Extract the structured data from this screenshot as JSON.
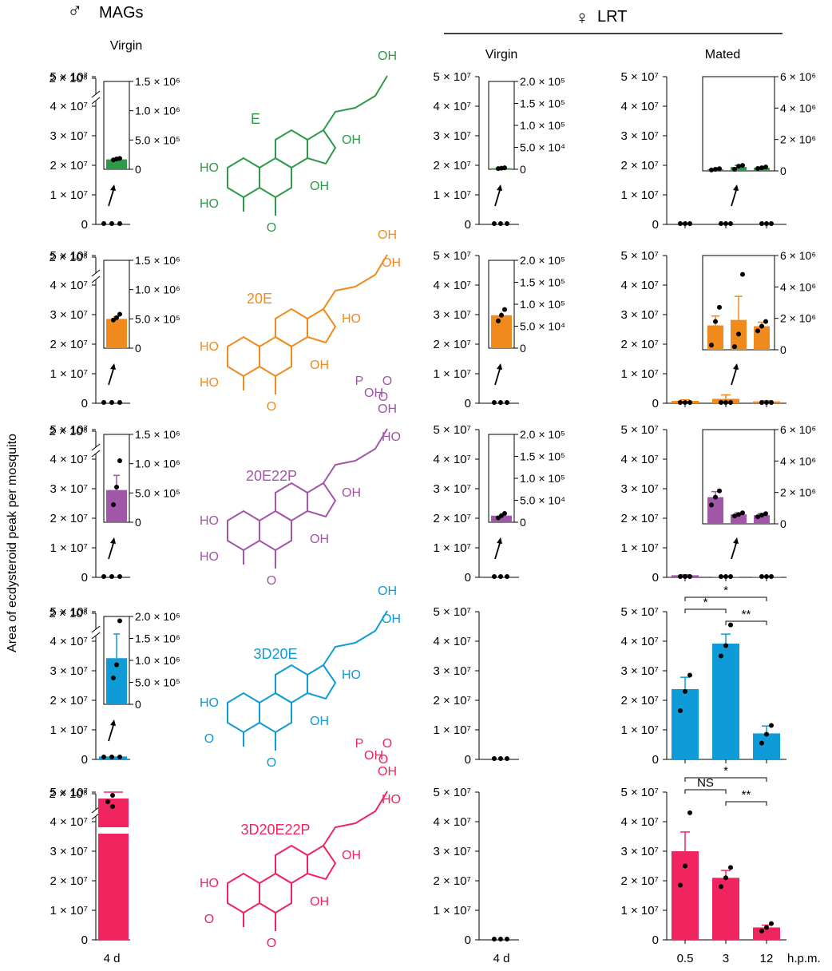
{
  "header": {
    "male_symbol": "♂",
    "male_title": "MAGs",
    "female_symbol": "♀",
    "female_title": "LRT",
    "col_mags": "Virgin",
    "col_lrt_virgin": "Virgin",
    "col_lrt_mated": "Mated"
  },
  "y_axis_label": "Area of ecdysteroid peak per mosquito",
  "x_labels": {
    "mags": "4 d",
    "lrt_virgin": "4 d",
    "mated": [
      "0.5",
      "3",
      "12"
    ],
    "mated_unit": "h.p.m."
  },
  "colors": {
    "E": "#2e9a48",
    "20E": "#f18a1d",
    "20E22P": "#a156a8",
    "3D20E": "#0e9bd8",
    "3D20E22P": "#f0245e"
  },
  "chart_data": [
    {
      "type": "bar",
      "compound": "E",
      "color": "#2e9a48",
      "mags_virgin": {
        "main_value": 0,
        "main_ticks": [
          "0",
          "1 × 10⁷",
          "2 × 10⁷",
          "3 × 10⁷",
          "4 × 10⁷",
          "5 × 10⁷"
        ],
        "break_tick": "2 × 10⁸",
        "inset": {
          "value": 170000,
          "points": [
            160000,
            175000,
            185000
          ],
          "err": 10000,
          "ylim": [
            0,
            1500000
          ],
          "ticks": [
            "0",
            "5.0 × 10⁵",
            "1.0 × 10⁶",
            "1.5 × 10⁶"
          ]
        }
      },
      "lrt_virgin": {
        "main_value": 0,
        "main_ticks": [
          "0",
          "1 × 10⁷",
          "2 × 10⁷",
          "3 × 10⁷",
          "4 × 10⁷",
          "5 × 10⁷"
        ],
        "inset": {
          "value": 2500,
          "points": [
            1500,
            2500,
            3500
          ],
          "err": 800,
          "ylim": [
            0,
            200000
          ],
          "ticks": [
            "0",
            "5.0 × 10⁴",
            "1.0 × 10⁵",
            "1.5 × 10⁵",
            "2.0 × 10⁵"
          ]
        }
      },
      "lrt_mated": {
        "categories": [
          "0.5",
          "3",
          "12"
        ],
        "main_values": [
          0,
          0,
          0
        ],
        "main_ticks": [
          "0",
          "1 × 10⁷",
          "2 × 10⁷",
          "3 × 10⁷",
          "4 × 10⁷",
          "5 × 10⁷"
        ],
        "inset": {
          "values": [
            100000,
            250000,
            200000
          ],
          "errs": [
            20000,
            100000,
            40000
          ],
          "points": [
            [
              60000,
              100000,
              140000
            ],
            [
              100000,
              300000,
              350000
            ],
            [
              150000,
              200000,
              250000
            ]
          ],
          "ylim": [
            0,
            6000000
          ],
          "ticks": [
            "0",
            "2 × 10⁶",
            "4 × 10⁶",
            "6 × 10⁶"
          ]
        }
      }
    },
    {
      "type": "bar",
      "compound": "20E",
      "color": "#f18a1d",
      "mags_virgin": {
        "main_value": 0,
        "main_ticks": [
          "0",
          "1 × 10⁷",
          "2 × 10⁷",
          "3 × 10⁷",
          "4 × 10⁷",
          "5 × 10⁷"
        ],
        "break_tick": "2 × 10⁸",
        "inset": {
          "value": 500000,
          "points": [
            480000,
            520000,
            580000
          ],
          "err": 40000,
          "ylim": [
            0,
            1500000
          ],
          "ticks": [
            "0",
            "5.0 × 10⁵",
            "1.0 × 10⁶",
            "1.5 × 10⁶"
          ]
        }
      },
      "lrt_virgin": {
        "main_value": 0,
        "main_ticks": [
          "0",
          "1 × 10⁷",
          "2 × 10⁷",
          "3 × 10⁷",
          "4 × 10⁷",
          "5 × 10⁷"
        ],
        "inset": {
          "value": 75000,
          "points": [
            62000,
            75000,
            88000
          ],
          "err": 8000,
          "ylim": [
            0,
            200000
          ],
          "ticks": [
            "0",
            "5.0 × 10⁴",
            "1.0 × 10⁵",
            "1.5 × 10⁵",
            "2.0 × 10⁵"
          ]
        }
      },
      "lrt_mated": {
        "categories": [
          "0.5",
          "3",
          "12"
        ],
        "main_values": [
          800000,
          1500000,
          600000
        ],
        "main_errs": [
          400000,
          1300000,
          300000
        ],
        "main_ticks": [
          "0",
          "1 × 10⁷",
          "2 × 10⁷",
          "3 × 10⁷",
          "4 × 10⁷",
          "5 × 10⁷"
        ],
        "inset": {
          "values": [
            1550000,
            1900000,
            1500000
          ],
          "errs": [
            600000,
            1500000,
            250000
          ],
          "points": [
            [
              300000,
              1800000,
              2700000
            ],
            [
              200000,
              1000000,
              4800000
            ],
            [
              1200000,
              1500000,
              1800000
            ]
          ],
          "ylim": [
            0,
            6000000
          ],
          "ticks": [
            "0",
            "2 × 10⁶",
            "4 × 10⁶",
            "6 × 10⁶"
          ]
        }
      }
    },
    {
      "type": "bar",
      "compound": "20E22P",
      "color": "#a156a8",
      "mags_virgin": {
        "main_value": 0,
        "main_ticks": [
          "0",
          "1 × 10⁷",
          "2 × 10⁷",
          "3 × 10⁷",
          "4 × 10⁷",
          "5 × 10⁷"
        ],
        "break_tick": "2 × 10⁸",
        "inset": {
          "value": 550000,
          "points": [
            300000,
            600000,
            1050000
          ],
          "err": 250000,
          "ylim": [
            0,
            1500000
          ],
          "ticks": [
            "0",
            "5.0 × 10⁵",
            "1.0 × 10⁶",
            "1.5 × 10⁶"
          ]
        }
      },
      "lrt_virgin": {
        "main_value": 0,
        "main_ticks": [
          "0",
          "1 × 10⁷",
          "2 × 10⁷",
          "3 × 10⁷",
          "4 × 10⁷",
          "5 × 10⁷"
        ],
        "inset": {
          "value": 15000,
          "points": [
            10000,
            15000,
            20000
          ],
          "err": 4000,
          "ylim": [
            0,
            200000
          ],
          "ticks": [
            "0",
            "5.0 × 10⁴",
            "1.0 × 10⁵",
            "1.5 × 10⁵",
            "2.0 × 10⁵"
          ]
        }
      },
      "lrt_mated": {
        "categories": [
          "0.5",
          "3",
          "12"
        ],
        "main_values": [
          700000,
          100000,
          100000
        ],
        "main_errs": [
          200000,
          50000,
          50000
        ],
        "main_ticks": [
          "0",
          "1 × 10⁷",
          "2 × 10⁷",
          "3 × 10⁷",
          "4 × 10⁷",
          "5 × 10⁷"
        ],
        "inset": {
          "values": [
            1700000,
            600000,
            550000
          ],
          "errs": [
            350000,
            100000,
            100000
          ],
          "points": [
            [
              1200000,
              1700000,
              2100000
            ],
            [
              500000,
              600000,
              700000
            ],
            [
              450000,
              550000,
              650000
            ]
          ],
          "ylim": [
            0,
            6000000
          ],
          "ticks": [
            "0",
            "2 × 10⁶",
            "4 × 10⁶",
            "6 × 10⁶"
          ]
        }
      }
    },
    {
      "type": "bar",
      "compound": "3D20E",
      "color": "#0e9bd8",
      "mags_virgin": {
        "main_value": 1000000,
        "main_ticks": [
          "0",
          "1 × 10⁷",
          "2 × 10⁷",
          "3 × 10⁷",
          "4 × 10⁷",
          "5 × 10⁷"
        ],
        "break_tick": "2 × 10⁸",
        "inset": {
          "value": 1050000,
          "points": [
            600000,
            900000,
            1900000
          ],
          "err": 550000,
          "ylim": [
            0,
            2000000
          ],
          "ticks": [
            "0",
            "5.0 × 10⁵",
            "1.0 × 10⁶",
            "1.5 × 10⁶",
            "2.0 × 10⁶"
          ]
        }
      },
      "lrt_virgin": {
        "main_value": 0,
        "points": [
          0,
          0,
          0
        ],
        "main_ticks": [
          "0",
          "1 × 10⁷",
          "2 × 10⁷",
          "3 × 10⁷",
          "4 × 10⁷",
          "5 × 10⁷"
        ]
      },
      "lrt_mated": {
        "categories": [
          "0.5",
          "3",
          "12"
        ],
        "main_values": [
          23800000,
          39200000,
          8800000
        ],
        "main_errs": [
          4000000,
          3200000,
          2500000
        ],
        "points": [
          [
            16500000,
            23000000,
            28500000
          ],
          [
            35000000,
            38500000,
            45500000
          ],
          [
            5500000,
            8500000,
            11500000
          ]
        ],
        "main_ticks": [
          "0",
          "1 × 10⁷",
          "2 × 10⁷",
          "3 × 10⁷",
          "4 × 10⁷",
          "5 × 10⁷"
        ],
        "significance": [
          "*",
          "*",
          "**"
        ]
      }
    },
    {
      "type": "bar",
      "compound": "3D20E22P",
      "color": "#f0245e",
      "mags_virgin": {
        "value": 170000000,
        "points": [
          160000000,
          172000000,
          185000000
        ],
        "err": 8000000,
        "main_ticks": [
          "0",
          "1 × 10⁷",
          "2 × 10⁷",
          "3 × 10⁷",
          "4 × 10⁷",
          "5 × 10⁷"
        ],
        "break_tick": "2 × 10⁸"
      },
      "lrt_virgin": {
        "main_value": 0,
        "points": [
          0,
          0,
          0
        ],
        "main_ticks": [
          "0",
          "1 × 10⁷",
          "2 × 10⁷",
          "3 × 10⁷",
          "4 × 10⁷",
          "5 × 10⁷"
        ]
      },
      "lrt_mated": {
        "categories": [
          "0.5",
          "3",
          "12"
        ],
        "main_values": [
          30000000,
          21000000,
          4200000
        ],
        "main_errs": [
          6500000,
          2500000,
          800000
        ],
        "points": [
          [
            18500000,
            25000000,
            43000000
          ],
          [
            18000000,
            21000000,
            24500000
          ],
          [
            3000000,
            4200000,
            5500000
          ]
        ],
        "main_ticks": [
          "0",
          "1 × 10⁷",
          "2 × 10⁷",
          "3 × 10⁷",
          "4 × 10⁷",
          "5 × 10⁷"
        ],
        "significance": [
          "*",
          "NS",
          "**"
        ]
      }
    }
  ],
  "structures": [
    {
      "name": "E",
      "labels": [
        "HO",
        "HO",
        "OH",
        "O",
        "OH",
        "OH"
      ]
    },
    {
      "name": "20E",
      "labels": [
        "HO",
        "HO",
        "OH",
        "O",
        "HO",
        "OH",
        "OH"
      ]
    },
    {
      "name": "20E22P",
      "labels": [
        "HO",
        "HO",
        "OH",
        "O",
        "OH",
        "OH",
        "HO",
        "P",
        "OH",
        "O",
        "O"
      ]
    },
    {
      "name": "3D20E",
      "labels": [
        "HO",
        "O",
        "OH",
        "O",
        "HO",
        "OH",
        "OH"
      ]
    },
    {
      "name": "3D20E22P",
      "labels": [
        "HO",
        "O",
        "OH",
        "O",
        "OH",
        "OH",
        "HO",
        "P",
        "OH",
        "O",
        "O"
      ]
    }
  ]
}
